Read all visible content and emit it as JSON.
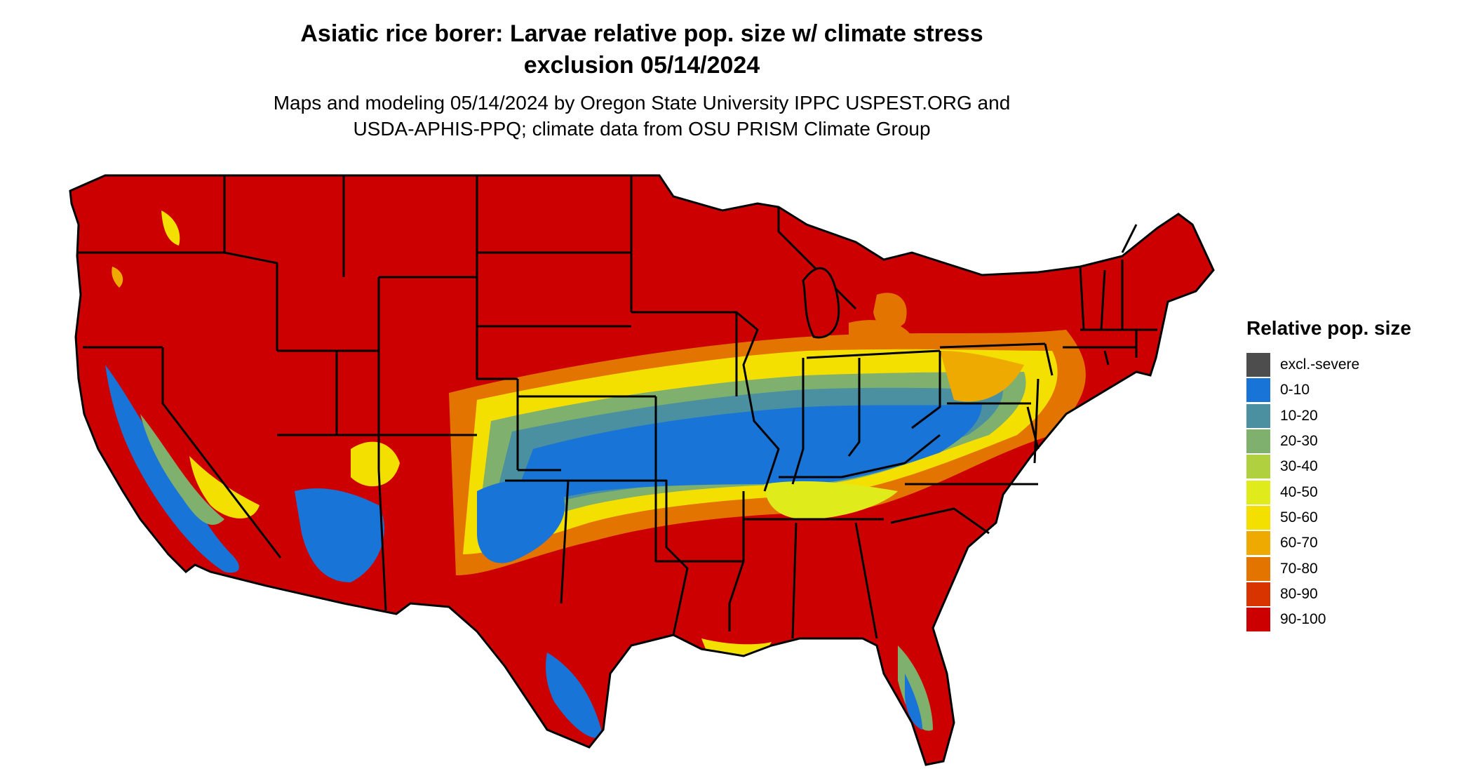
{
  "title_line1": "Asiatic rice borer: Larvae relative pop. size w/ climate stress",
  "title_line2": "exclusion 05/14/2024",
  "subtitle_line1": "Maps and modeling 05/14/2024 by Oregon State University IPPC USPEST.ORG and",
  "subtitle_line2": "USDA-APHIS-PPQ; climate data from OSU PRISM Climate Group",
  "legend": {
    "title": "Relative pop. size",
    "items": [
      {
        "label": "excl.-severe",
        "color": "#4d4d4d"
      },
      {
        "label": "0-10",
        "color": "#1874d6"
      },
      {
        "label": "10-20",
        "color": "#4a90a0"
      },
      {
        "label": "20-30",
        "color": "#7fb06e"
      },
      {
        "label": "30-40",
        "color": "#b0d040"
      },
      {
        "label": "40-50",
        "color": "#dfeb1a"
      },
      {
        "label": "50-60",
        "color": "#f4e000"
      },
      {
        "label": "60-70",
        "color": "#eeaa00"
      },
      {
        "label": "70-80",
        "color": "#e47400"
      },
      {
        "label": "80-90",
        "color": "#d83400"
      },
      {
        "label": "90-100",
        "color": "#cc0000"
      }
    ]
  }
}
